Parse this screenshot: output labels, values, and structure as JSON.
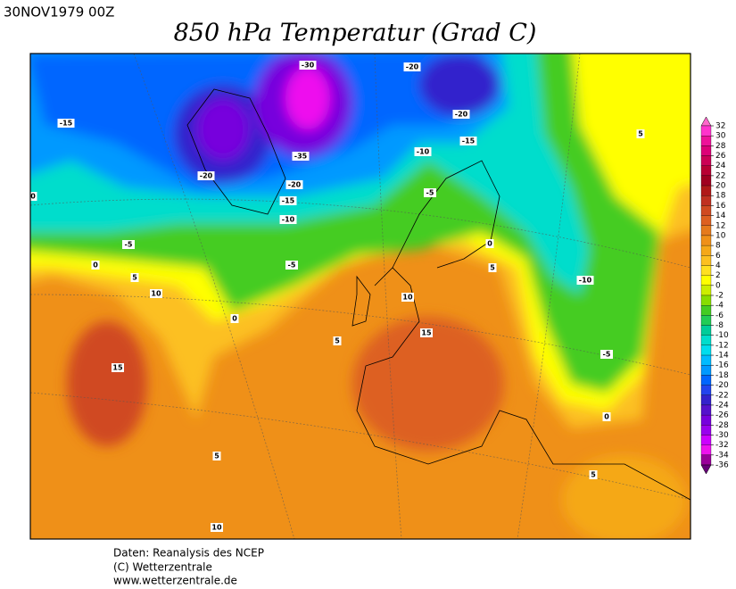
{
  "header": {
    "date": "30NOV1979 00Z",
    "title": "850 hPa Temperatur (Grad C)"
  },
  "map": {
    "contour_labels": [
      -30,
      -20,
      -15,
      -20,
      -15,
      -10,
      -35,
      -20,
      -20,
      -5,
      -15,
      0,
      -10,
      -5,
      0,
      0,
      -5,
      5,
      5,
      10,
      10,
      -10,
      0,
      15,
      5,
      -5,
      15,
      0,
      5,
      5,
      10,
      5
    ]
  },
  "colorbar": {
    "labels": [
      32,
      30,
      28,
      26,
      24,
      22,
      20,
      18,
      16,
      14,
      12,
      10,
      8,
      6,
      4,
      2,
      0,
      -2,
      -4,
      -6,
      -8,
      -10,
      -12,
      -14,
      -16,
      -18,
      -20,
      -22,
      -24,
      -26,
      -28,
      -30,
      -32,
      -34,
      -36
    ],
    "colors": [
      "#ff66cc",
      "#ff33cc",
      "#ee1199",
      "#dd0077",
      "#cc0055",
      "#b80033",
      "#a00020",
      "#b01818",
      "#c03020",
      "#d04a20",
      "#dd6020",
      "#e57a1c",
      "#ef9018",
      "#f5a818",
      "#fcc020",
      "#ffe020",
      "#ffff00",
      "#ccee00",
      "#88dd00",
      "#44cc22",
      "#22cc55",
      "#00cc99",
      "#00ddcc",
      "#00ddee",
      "#00bbff",
      "#0099ff",
      "#0066ff",
      "#2244ee",
      "#3322cc",
      "#5511cc",
      "#7700dd",
      "#9900ee",
      "#cc00ff",
      "#ee11ee",
      "#990099",
      "#660077"
    ]
  },
  "footer": {
    "lines": [
      "Daten: Reanalysis des NCEP",
      "(C) Wetterzentrale",
      "www.wetterzentrale.de"
    ]
  }
}
